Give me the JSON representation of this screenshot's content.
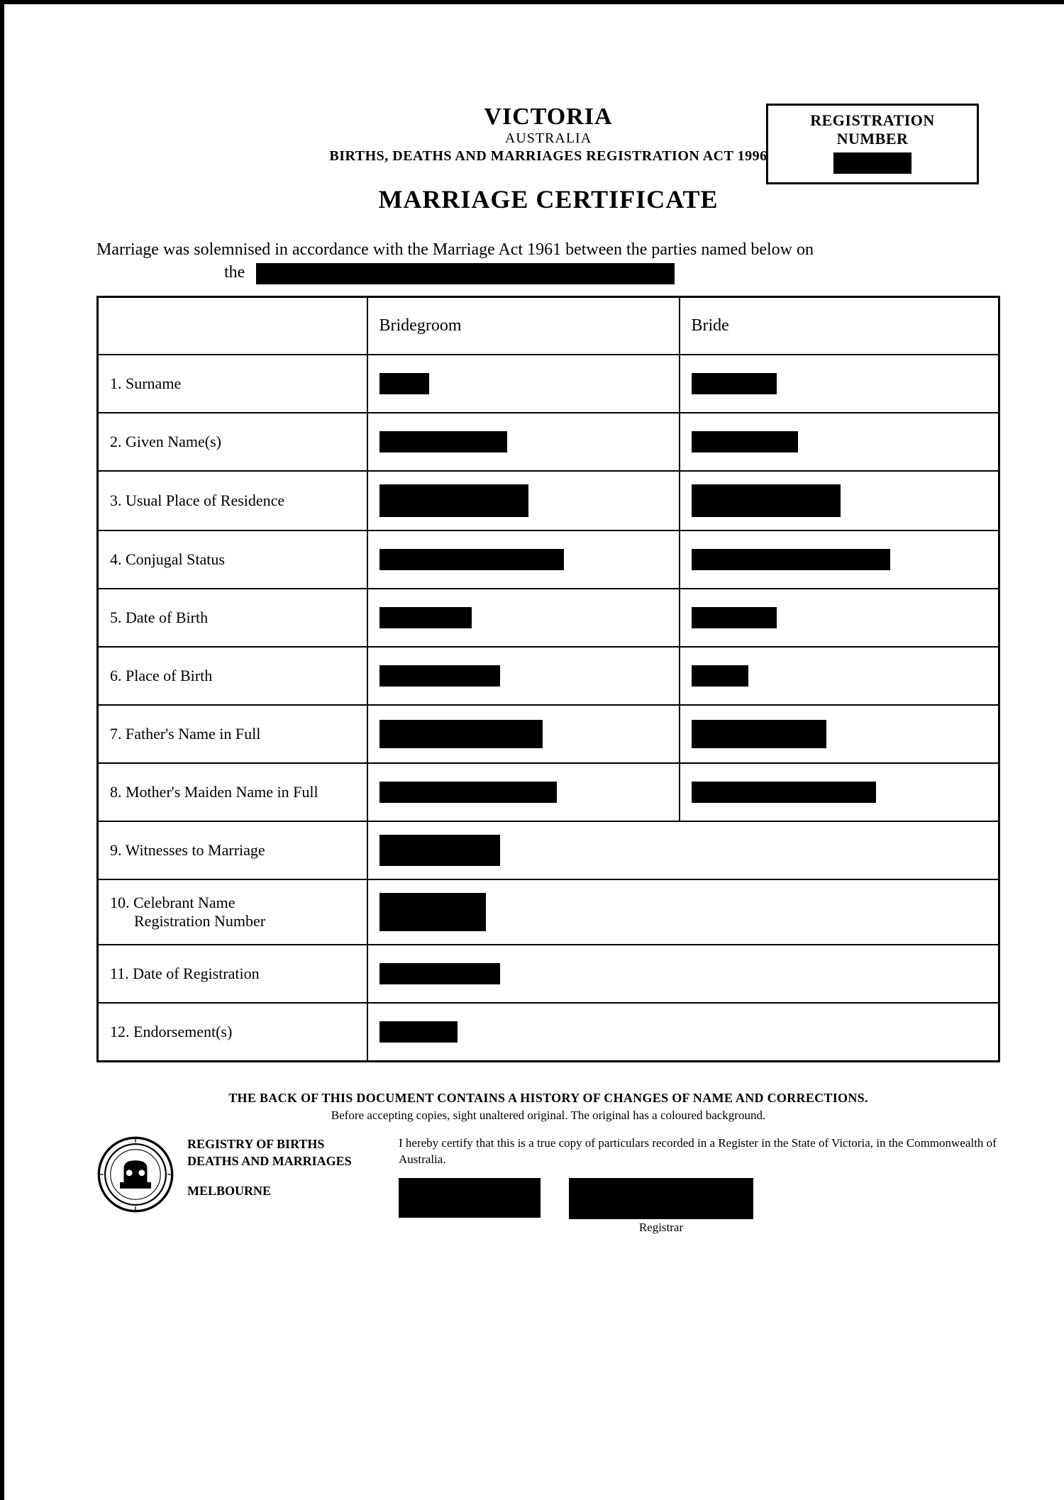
{
  "reg_box": {
    "label": "REGISTRATION NUMBER",
    "redact_w": 110
  },
  "header": {
    "state": "VICTORIA",
    "country": "AUSTRALIA",
    "act": "BIRTHS, DEATHS AND MARRIAGES REGISTRATION ACT 1996",
    "title": "MARRIAGE CERTIFICATE"
  },
  "intro": {
    "line1": "Marriage was solemnised in accordance with the Marriage Act 1961 between the parties named below on",
    "the": "the",
    "redact_w": 590
  },
  "columns": {
    "groom": "Bridegroom",
    "bride": "Bride"
  },
  "rows": [
    {
      "label": "1. Surname",
      "gw": 70,
      "bw": 120,
      "single": false
    },
    {
      "label": "2. Given Name(s)",
      "gw": 180,
      "bw": 150,
      "single": false
    },
    {
      "label": "3. Usual Place of Residence",
      "gw": 210,
      "bw": 210,
      "gh": 46,
      "bh": 46,
      "single": false
    },
    {
      "label": "4. Conjugal Status",
      "gw": 260,
      "bw": 280,
      "single": false
    },
    {
      "label": "5. Date of Birth",
      "gw": 130,
      "bw": 120,
      "single": false
    },
    {
      "label": "6. Place of Birth",
      "gw": 170,
      "bw": 80,
      "single": false
    },
    {
      "label": "7. Father's Name in Full",
      "gw": 230,
      "bw": 190,
      "gh": 40,
      "bh": 40,
      "single": false
    },
    {
      "label": "8. Mother's Maiden Name in Full",
      "gw": 250,
      "bw": 260,
      "single": false
    },
    {
      "label": "9. Witnesses to Marriage",
      "gw": 170,
      "gh": 44,
      "single": true
    },
    {
      "label": "10. Celebrant Name",
      "sublabel": "Registration Number",
      "gw": 150,
      "gh": 54,
      "single": true,
      "tall": true
    },
    {
      "label": "11. Date of Registration",
      "gw": 170,
      "single": true
    },
    {
      "label": "12. Endorsement(s)",
      "gw": 110,
      "single": true
    }
  ],
  "footer": {
    "note": "THE BACK OF THIS DOCUMENT CONTAINS A HISTORY OF CHANGES OF NAME AND CORRECTIONS.",
    "sub": "Before accepting copies, sight unaltered original. The original has a coloured background.",
    "registry_l1": "REGISTRY OF BIRTHS",
    "registry_l2": "DEATHS AND MARRIAGES",
    "city": "MELBOURNE",
    "certify": "I hereby certify that this is a true copy of particulars recorded in a Register in the State of Victoria, in the Commonwealth of Australia.",
    "registrar": "Registrar",
    "sig1_w": 200,
    "sig1_h": 56,
    "sig2_w": 260,
    "sig2_h": 56
  },
  "colors": {
    "ink": "#000000",
    "paper": "#ffffff"
  }
}
